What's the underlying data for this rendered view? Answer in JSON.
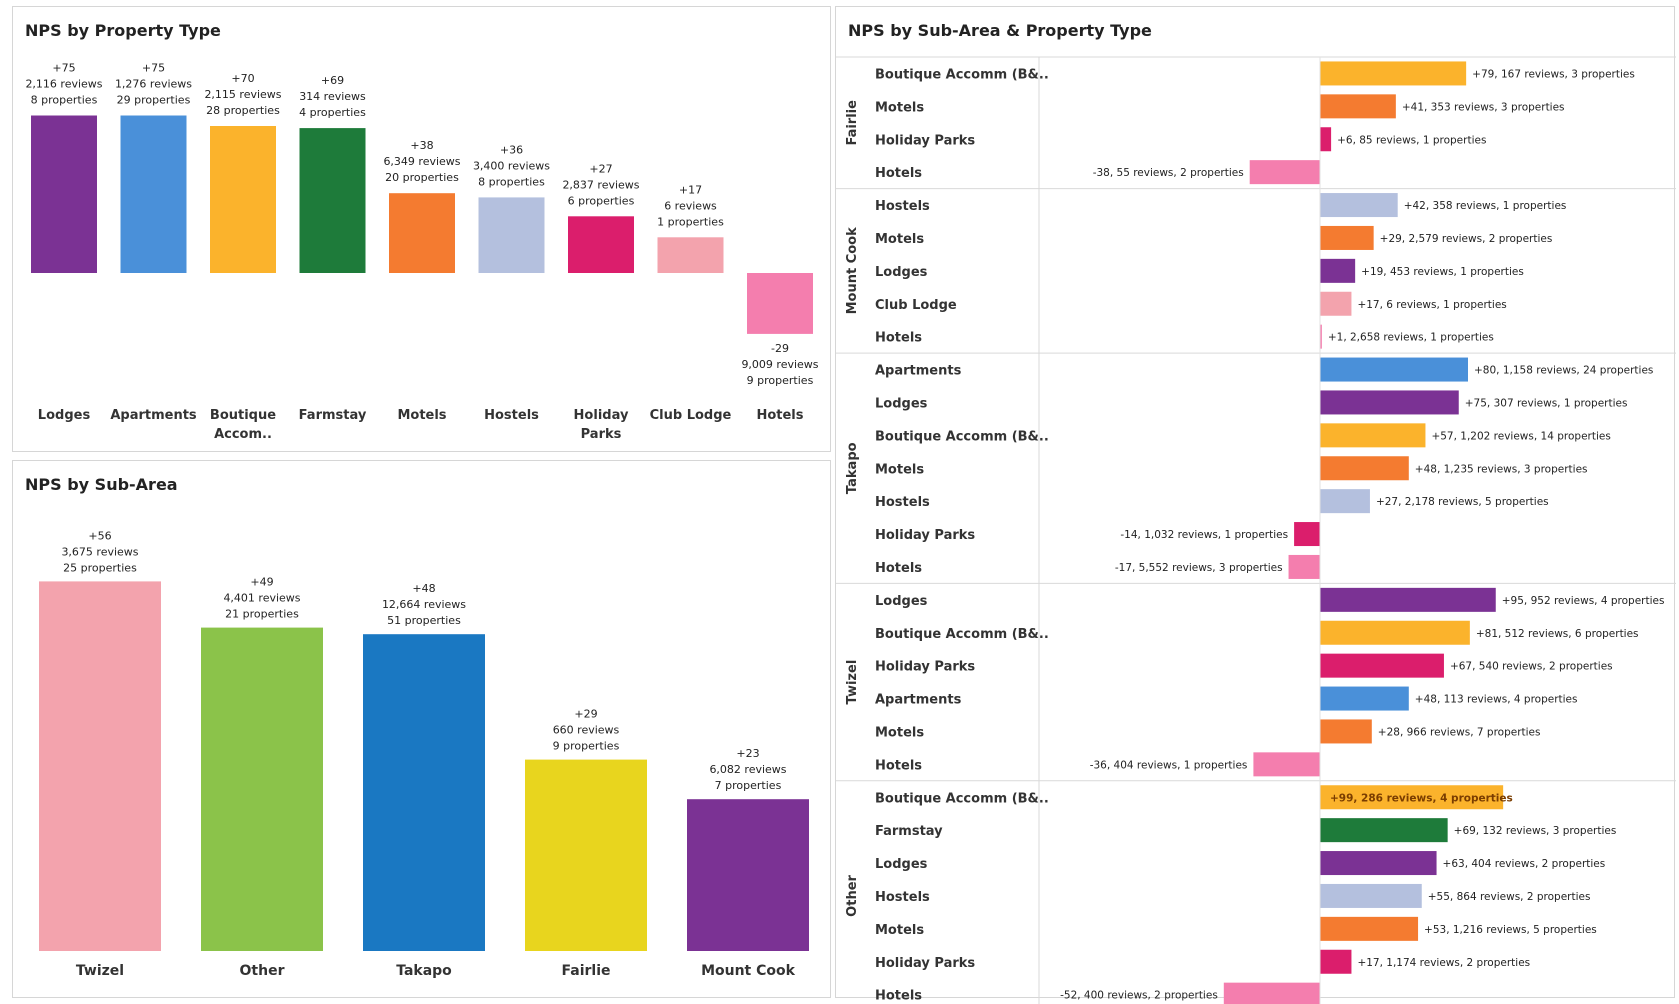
{
  "colors": {
    "purple": "#7B3294",
    "blue": "#4A90D9",
    "orange_gold": "#FBB32C",
    "green": "#1E7B3A",
    "orange": "#F47B30",
    "lavender": "#B4C0DE",
    "magenta": "#DB1E6C",
    "light_pink": "#F3A3AD",
    "pink": "#F47EAE",
    "lime": "#8BC34A",
    "royal_blue": "#1A78C2",
    "yellow": "#E8D51E"
  },
  "chart_data": [
    {
      "type": "bar",
      "title": "NPS by Property Type",
      "categories": [
        "Lodges",
        "Apartments",
        "Boutique Accom..",
        "Farmstay",
        "Motels",
        "Hostels",
        "Holiday Parks",
        "Club Lodge",
        "Hotels"
      ],
      "values": [
        75,
        75,
        70,
        69,
        38,
        36,
        27,
        17,
        -29
      ],
      "value_labels": [
        "+75",
        "+75",
        "+70",
        "+69",
        "+38",
        "+36",
        "+27",
        "+17",
        "-29"
      ],
      "reviews": [
        "2,116 reviews",
        "1,276 reviews",
        "2,115 reviews",
        "314 reviews",
        "6,349 reviews",
        "3,400 reviews",
        "2,837 reviews",
        "6 reviews",
        "9,009 reviews"
      ],
      "properties": [
        "8 properties",
        "29 properties",
        "28 properties",
        "4 properties",
        "20 properties",
        "8 properties",
        "6 properties",
        "1 properties",
        "9 properties"
      ],
      "colors": [
        "#7B3294",
        "#4A90D9",
        "#FBB32C",
        "#1E7B3A",
        "#F47B30",
        "#B4C0DE",
        "#DB1E6C",
        "#F3A3AD",
        "#F47EAE"
      ],
      "ylim": [
        -30,
        80
      ]
    },
    {
      "type": "bar",
      "title": "NPS by Sub-Area",
      "categories": [
        "Twizel",
        "Other",
        "Takapo",
        "Fairlie",
        "Mount Cook"
      ],
      "values": [
        56,
        49,
        48,
        29,
        23
      ],
      "value_labels": [
        "+56",
        "+49",
        "+48",
        "+29",
        "+23"
      ],
      "reviews": [
        "3,675 reviews",
        "4,401 reviews",
        "12,664 reviews",
        "660 reviews",
        "6,082 reviews"
      ],
      "properties": [
        "25 properties",
        "21 properties",
        "51 properties",
        "9 properties",
        "7 properties"
      ],
      "colors": [
        "#F3A3AD",
        "#8BC34A",
        "#1A78C2",
        "#E8D51E",
        "#7B3294"
      ],
      "ylim": [
        0,
        60
      ]
    },
    {
      "type": "bar",
      "orientation": "horizontal",
      "title": "NPS by Sub-Area & Property Type",
      "groups": [
        {
          "name": "Fairlie",
          "rows": [
            {
              "label": "Boutique Accomm (B&..",
              "value": 79,
              "text": "+79, 167 reviews, 3 properties",
              "color": "#FBB32C"
            },
            {
              "label": "Motels",
              "value": 41,
              "text": "+41, 353 reviews, 3 properties",
              "color": "#F47B30"
            },
            {
              "label": "Holiday Parks",
              "value": 6,
              "text": "+6, 85 reviews, 1 properties",
              "color": "#DB1E6C"
            },
            {
              "label": "Hotels",
              "value": -38,
              "text": "-38, 55 reviews, 2 properties",
              "color": "#F47EAE"
            }
          ]
        },
        {
          "name": "Mount Cook",
          "rows": [
            {
              "label": "Hostels",
              "value": 42,
              "text": "+42, 358 reviews, 1 properties",
              "color": "#B4C0DE"
            },
            {
              "label": "Motels",
              "value": 29,
              "text": "+29, 2,579 reviews, 2 properties",
              "color": "#F47B30"
            },
            {
              "label": "Lodges",
              "value": 19,
              "text": "+19, 453 reviews, 1 properties",
              "color": "#7B3294"
            },
            {
              "label": "Club Lodge",
              "value": 17,
              "text": "+17, 6 reviews, 1 properties",
              "color": "#F3A3AD"
            },
            {
              "label": "Hotels",
              "value": 1,
              "text": "+1, 2,658 reviews, 1 properties",
              "color": "#F47EAE"
            }
          ]
        },
        {
          "name": "Takapo",
          "rows": [
            {
              "label": "Apartments",
              "value": 80,
              "text": "+80, 1,158 reviews, 24 properties",
              "color": "#4A90D9"
            },
            {
              "label": "Lodges",
              "value": 75,
              "text": "+75, 307 reviews, 1 properties",
              "color": "#7B3294"
            },
            {
              "label": "Boutique Accomm (B&..",
              "value": 57,
              "text": "+57, 1,202 reviews, 14 properties",
              "color": "#FBB32C"
            },
            {
              "label": "Motels",
              "value": 48,
              "text": "+48, 1,235 reviews, 3 properties",
              "color": "#F47B30"
            },
            {
              "label": "Hostels",
              "value": 27,
              "text": "+27, 2,178 reviews, 5 properties",
              "color": "#B4C0DE"
            },
            {
              "label": "Holiday Parks",
              "value": -14,
              "text": "-14, 1,032 reviews, 1 properties",
              "color": "#DB1E6C"
            },
            {
              "label": "Hotels",
              "value": -17,
              "text": "-17, 5,552 reviews, 3 properties",
              "color": "#F47EAE"
            }
          ]
        },
        {
          "name": "Twizel",
          "rows": [
            {
              "label": "Lodges",
              "value": 95,
              "text": "+95, 952 reviews, 4 properties",
              "color": "#7B3294"
            },
            {
              "label": "Boutique Accomm (B&..",
              "value": 81,
              "text": "+81, 512 reviews, 6 properties",
              "color": "#FBB32C"
            },
            {
              "label": "Holiday Parks",
              "value": 67,
              "text": "+67, 540 reviews, 2 properties",
              "color": "#DB1E6C"
            },
            {
              "label": "Apartments",
              "value": 48,
              "text": "+48, 113 reviews, 4 properties",
              "color": "#4A90D9"
            },
            {
              "label": "Motels",
              "value": 28,
              "text": "+28, 966 reviews, 7 properties",
              "color": "#F47B30"
            },
            {
              "label": "Hotels",
              "value": -36,
              "text": "-36, 404 reviews, 1 properties",
              "color": "#F47EAE"
            }
          ]
        },
        {
          "name": "Other",
          "rows": [
            {
              "label": "Boutique Accomm (B&..",
              "value": 99,
              "text": "+99, 286 reviews, 4 properties",
              "color": "#FBB32C",
              "label_inside": true
            },
            {
              "label": "Farmstay",
              "value": 69,
              "text": "+69, 132 reviews, 3 properties",
              "color": "#1E7B3A"
            },
            {
              "label": "Lodges",
              "value": 63,
              "text": "+63, 404 reviews, 2 properties",
              "color": "#7B3294"
            },
            {
              "label": "Hostels",
              "value": 55,
              "text": "+55, 864 reviews, 2 properties",
              "color": "#B4C0DE"
            },
            {
              "label": "Motels",
              "value": 53,
              "text": "+53, 1,216 reviews, 5 properties",
              "color": "#F47B30"
            },
            {
              "label": "Holiday Parks",
              "value": 17,
              "text": "+17, 1,174 reviews, 2 properties",
              "color": "#DB1E6C"
            },
            {
              "label": "Hotels",
              "value": -52,
              "text": "-52, 400 reviews, 2 properties",
              "color": "#F47EAE"
            }
          ]
        }
      ],
      "xlim": [
        -100,
        100
      ]
    }
  ]
}
